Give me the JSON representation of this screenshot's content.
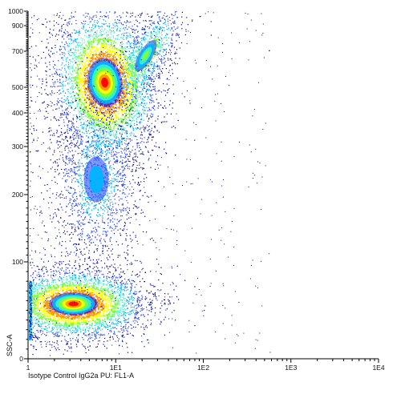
{
  "chart_data": {
    "type": "scatter",
    "title": "",
    "xlabel": "Isotype Control IgG2a PU: FL1-A",
    "ylabel": "SSC-A",
    "x_scale": "log",
    "y_scale": "biexponential",
    "xlim": [
      1,
      10000
    ],
    "ylim": [
      0,
      1000
    ],
    "grid": false,
    "x_ticks": [
      {
        "value": 1,
        "label": "1"
      },
      {
        "value": 10,
        "label": "1E1"
      },
      {
        "value": 100,
        "label": "1E2"
      },
      {
        "value": 1000,
        "label": "1E3"
      },
      {
        "value": 10000,
        "label": "1E4"
      }
    ],
    "y_ticks": [
      {
        "value": 0,
        "label": "0"
      },
      {
        "value": 100,
        "label": "100"
      },
      {
        "value": 200,
        "label": "200"
      },
      {
        "value": 300,
        "label": "300"
      },
      {
        "value": 400,
        "label": "400"
      },
      {
        "value": 500,
        "label": "500"
      },
      {
        "value": 700,
        "label": "700"
      },
      {
        "value": 900,
        "label": "900"
      },
      {
        "value": 1000,
        "label": "1000"
      }
    ],
    "density_colors": [
      "#00008b",
      "#1e3cff",
      "#00b4ff",
      "#3cf0c8",
      "#78ff3c",
      "#ffff00",
      "#ff9600",
      "#ff0000"
    ],
    "populations": [
      {
        "x_center": 7.5,
        "y_center": 500,
        "peak_density": "high"
      },
      {
        "x_center": 3.3,
        "y_center": 55,
        "peak_density": "high"
      },
      {
        "x_center": 6.0,
        "y_center": 215,
        "peak_density": "low"
      },
      {
        "x_center": 22,
        "y_center": 740,
        "peak_density": "medium"
      }
    ]
  }
}
